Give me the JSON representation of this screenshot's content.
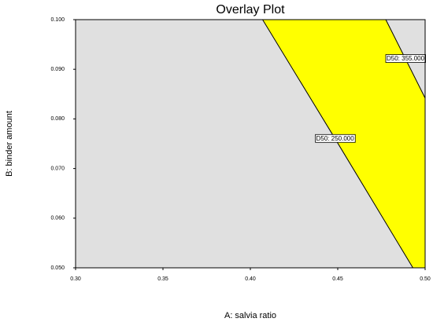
{
  "chart_data": {
    "type": "overlay",
    "title": "Overlay Plot",
    "x_label": "A: salvia ratio",
    "y_label": "B: binder amount",
    "xlim": [
      0.3,
      0.5
    ],
    "ylim": [
      0.05,
      0.1
    ],
    "xticks": [
      {
        "value": 0.3,
        "label": "0.30"
      },
      {
        "value": 0.35,
        "label": "0.35"
      },
      {
        "value": 0.4,
        "label": "0.40"
      },
      {
        "value": 0.45,
        "label": "0.45"
      },
      {
        "value": 0.5,
        "label": "0.50"
      }
    ],
    "yticks": [
      {
        "value": 0.05,
        "label": "0.050"
      },
      {
        "value": 0.06,
        "label": "0.060"
      },
      {
        "value": 0.07,
        "label": "0.070"
      },
      {
        "value": 0.08,
        "label": "0.080"
      },
      {
        "value": 0.09,
        "label": "0.090"
      },
      {
        "value": 0.1,
        "label": "0.100"
      }
    ],
    "background_color": "#e0e0e0",
    "region_color": "#ffff00",
    "series": [
      {
        "name": "D50: 250.000",
        "color": "#000000",
        "x": [
          0.407,
          0.4485,
          0.493
        ],
        "y": [
          0.1,
          0.076,
          0.05
        ]
      },
      {
        "name": "D50: 355.000",
        "color": "#000000",
        "x": [
          0.4775,
          0.5
        ],
        "y": [
          0.1,
          0.0842
        ]
      }
    ]
  }
}
